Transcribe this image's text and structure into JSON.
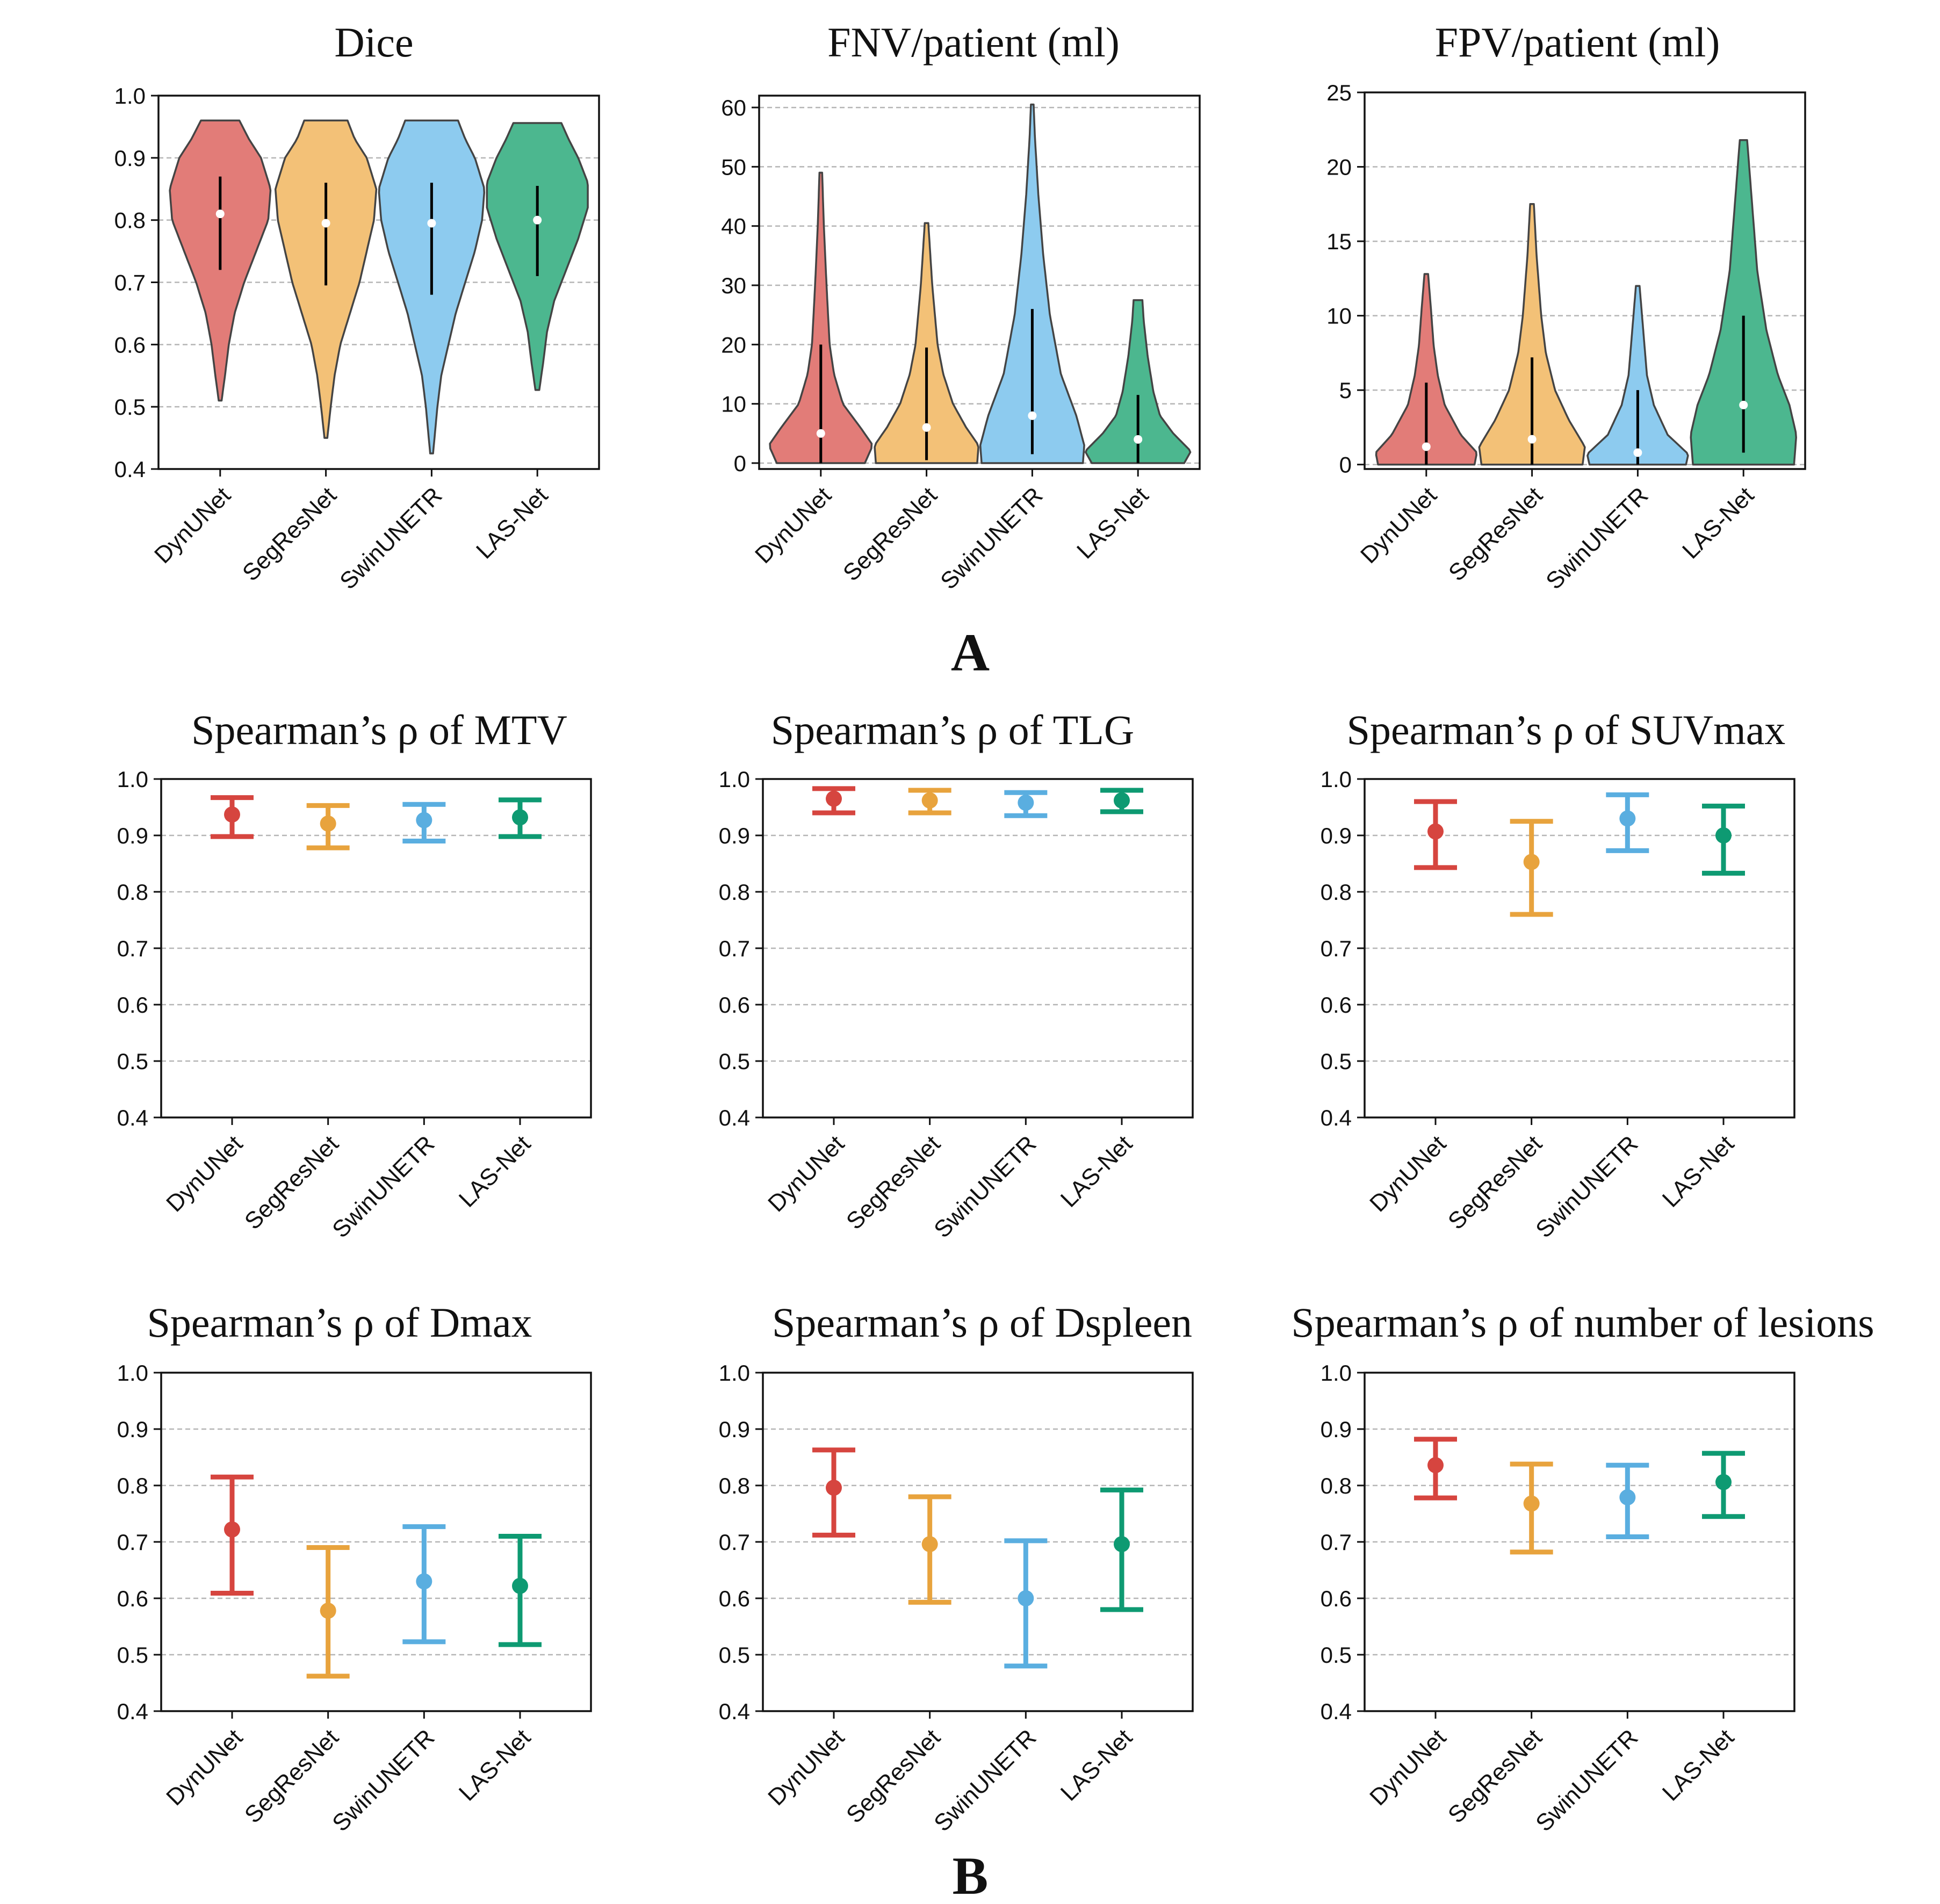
{
  "figure": {
    "panel_labels": [
      "A",
      "B"
    ]
  },
  "colors": {
    "DynUNet": "#d6453f",
    "SegResNet": "#e8a33d",
    "SwinUNETR": "#5aaee0",
    "LAS-Net": "#0e9a72",
    "violin_fill": {
      "DynUNet": "#e27c78",
      "SegResNet": "#f3c177",
      "SwinUNETR": "#8dcbef",
      "LAS-Net": "#4cb78f"
    }
  },
  "chart_data": [
    {
      "id": "dice",
      "type": "violin",
      "title": "Dice",
      "categories": [
        "DynUNet",
        "SegResNet",
        "SwinUNETR",
        "LAS-Net"
      ],
      "ylim": [
        0.4,
        1.0
      ],
      "yticks": [
        0.4,
        0.5,
        0.6,
        0.7,
        0.8,
        0.9,
        1.0
      ],
      "ytick_labels": [
        "0.4",
        "0.5",
        "0.6",
        "0.7",
        "0.8",
        "0.9",
        "1.0"
      ],
      "grid": true,
      "series": [
        {
          "name": "DynUNet",
          "min": 0.51,
          "max": 0.96,
          "q1": 0.72,
          "q3": 0.87,
          "median": 0.81,
          "shape": [
            [
              0.51,
              0.003
            ],
            [
              0.55,
              0.01
            ],
            [
              0.6,
              0.018
            ],
            [
              0.65,
              0.03
            ],
            [
              0.7,
              0.05
            ],
            [
              0.75,
              0.075
            ],
            [
              0.8,
              0.1
            ],
            [
              0.85,
              0.105
            ],
            [
              0.9,
              0.085
            ],
            [
              0.93,
              0.06
            ],
            [
              0.96,
              0.04
            ]
          ]
        },
        {
          "name": "SegResNet",
          "min": 0.45,
          "max": 0.96,
          "q1": 0.695,
          "q3": 0.86,
          "median": 0.795,
          "shape": [
            [
              0.45,
              0.003
            ],
            [
              0.5,
              0.01
            ],
            [
              0.55,
              0.018
            ],
            [
              0.6,
              0.03
            ],
            [
              0.65,
              0.05
            ],
            [
              0.7,
              0.07
            ],
            [
              0.75,
              0.085
            ],
            [
              0.8,
              0.1
            ],
            [
              0.85,
              0.105
            ],
            [
              0.9,
              0.085
            ],
            [
              0.93,
              0.06
            ],
            [
              0.96,
              0.045
            ]
          ]
        },
        {
          "name": "SwinUNETR",
          "min": 0.425,
          "max": 0.96,
          "q1": 0.68,
          "q3": 0.86,
          "median": 0.795,
          "shape": [
            [
              0.425,
              0.003
            ],
            [
              0.5,
              0.012
            ],
            [
              0.55,
              0.02
            ],
            [
              0.6,
              0.035
            ],
            [
              0.65,
              0.05
            ],
            [
              0.7,
              0.07
            ],
            [
              0.75,
              0.09
            ],
            [
              0.8,
              0.105
            ],
            [
              0.85,
              0.11
            ],
            [
              0.9,
              0.09
            ],
            [
              0.93,
              0.07
            ],
            [
              0.96,
              0.055
            ]
          ]
        },
        {
          "name": "LAS-Net",
          "min": 0.527,
          "max": 0.956,
          "q1": 0.71,
          "q3": 0.855,
          "median": 0.8,
          "shape": [
            [
              0.527,
              0.004
            ],
            [
              0.57,
              0.012
            ],
            [
              0.62,
              0.02
            ],
            [
              0.67,
              0.035
            ],
            [
              0.72,
              0.06
            ],
            [
              0.77,
              0.085
            ],
            [
              0.82,
              0.105
            ],
            [
              0.86,
              0.105
            ],
            [
              0.9,
              0.085
            ],
            [
              0.93,
              0.065
            ],
            [
              0.956,
              0.05
            ]
          ]
        }
      ]
    },
    {
      "id": "fnv",
      "type": "violin",
      "title": "FNV/patient (ml)",
      "categories": [
        "DynUNet",
        "SegResNet",
        "SwinUNETR",
        "LAS-Net"
      ],
      "ylim": [
        -1,
        62
      ],
      "yticks": [
        0,
        10,
        20,
        30,
        40,
        50,
        60
      ],
      "ytick_labels": [
        "0",
        "10",
        "20",
        "30",
        "40",
        "50",
        "60"
      ],
      "grid": true,
      "series": [
        {
          "name": "DynUNet",
          "min": 0,
          "max": 49,
          "q1": 0,
          "q3": 20,
          "median": 5,
          "shape": [
            [
              0,
              0.1
            ],
            [
              3,
              0.118
            ],
            [
              6,
              0.09
            ],
            [
              10,
              0.05
            ],
            [
              15,
              0.03
            ],
            [
              20,
              0.02
            ],
            [
              30,
              0.013
            ],
            [
              40,
              0.007
            ],
            [
              49,
              0.003
            ]
          ]
        },
        {
          "name": "SegResNet",
          "min": 0,
          "max": 40.5,
          "q1": 0.5,
          "q3": 19.5,
          "median": 6,
          "shape": [
            [
              0,
              0.115
            ],
            [
              3,
              0.118
            ],
            [
              6,
              0.09
            ],
            [
              10,
              0.06
            ],
            [
              15,
              0.038
            ],
            [
              20,
              0.025
            ],
            [
              30,
              0.013
            ],
            [
              40.5,
              0.004
            ]
          ]
        },
        {
          "name": "SwinUNETR",
          "min": 0,
          "max": 60.5,
          "q1": 1.5,
          "q3": 26,
          "median": 8,
          "shape": [
            [
              0,
              0.115
            ],
            [
              3,
              0.118
            ],
            [
              8,
              0.1
            ],
            [
              15,
              0.065
            ],
            [
              25,
              0.04
            ],
            [
              35,
              0.025
            ],
            [
              45,
              0.014
            ],
            [
              55,
              0.006
            ],
            [
              60.5,
              0.003
            ]
          ]
        },
        {
          "name": "LAS-Net",
          "min": 0,
          "max": 27.5,
          "q1": 0,
          "q3": 11.5,
          "median": 4,
          "shape": [
            [
              0,
              0.105
            ],
            [
              2,
              0.12
            ],
            [
              5,
              0.08
            ],
            [
              8,
              0.05
            ],
            [
              12,
              0.035
            ],
            [
              18,
              0.022
            ],
            [
              24,
              0.013
            ],
            [
              27.5,
              0.01
            ]
          ]
        }
      ]
    },
    {
      "id": "fpv",
      "type": "violin",
      "title": "FPV/patient (ml)",
      "categories": [
        "DynUNet",
        "SegResNet",
        "SwinUNETR",
        "LAS-Net"
      ],
      "ylim": [
        -0.3,
        25
      ],
      "yticks": [
        0,
        5,
        10,
        15,
        20,
        25
      ],
      "ytick_labels": [
        "0",
        "5",
        "10",
        "15",
        "20",
        "25"
      ],
      "grid": true,
      "series": [
        {
          "name": "DynUNet",
          "min": 0,
          "max": 12.8,
          "q1": 0,
          "q3": 5.5,
          "median": 1.2,
          "shape": [
            [
              0,
              0.105
            ],
            [
              0.8,
              0.11
            ],
            [
              2,
              0.075
            ],
            [
              4,
              0.04
            ],
            [
              6,
              0.025
            ],
            [
              8,
              0.016
            ],
            [
              10.5,
              0.01
            ],
            [
              12.8,
              0.004
            ]
          ]
        },
        {
          "name": "SegResNet",
          "min": 0,
          "max": 17.5,
          "q1": 0,
          "q3": 7.2,
          "median": 1.7,
          "shape": [
            [
              0,
              0.11
            ],
            [
              1.2,
              0.115
            ],
            [
              3,
              0.08
            ],
            [
              5,
              0.05
            ],
            [
              7.5,
              0.03
            ],
            [
              10,
              0.02
            ],
            [
              14,
              0.01
            ],
            [
              17.5,
              0.004
            ]
          ]
        },
        {
          "name": "SwinUNETR",
          "min": 0,
          "max": 12,
          "q1": 0,
          "q3": 5,
          "median": 0.8,
          "shape": [
            [
              0,
              0.105
            ],
            [
              0.7,
              0.11
            ],
            [
              2,
              0.065
            ],
            [
              4,
              0.035
            ],
            [
              6,
              0.02
            ],
            [
              9,
              0.012
            ],
            [
              12,
              0.004
            ]
          ]
        },
        {
          "name": "LAS-Net",
          "min": 0,
          "max": 21.8,
          "q1": 0.8,
          "q3": 10,
          "median": 4,
          "shape": [
            [
              0,
              0.11
            ],
            [
              2,
              0.115
            ],
            [
              4,
              0.1
            ],
            [
              6,
              0.075
            ],
            [
              9,
              0.05
            ],
            [
              13,
              0.03
            ],
            [
              17,
              0.02
            ],
            [
              21.8,
              0.008
            ]
          ]
        }
      ]
    },
    {
      "id": "mtv",
      "type": "errorbar",
      "title": "Spearman’s ρ of MTV",
      "categories": [
        "DynUNet",
        "SegResNet",
        "SwinUNETR",
        "LAS-Net"
      ],
      "ylim": [
        0.4,
        1.0
      ],
      "yticks": [
        0.4,
        0.5,
        0.6,
        0.7,
        0.8,
        0.9,
        1.0
      ],
      "ytick_labels": [
        "0.4",
        "0.5",
        "0.6",
        "0.7",
        "0.8",
        "0.9",
        "1.0"
      ],
      "grid": true,
      "series": [
        {
          "name": "DynUNet",
          "value": 0.937,
          "lower": 0.898,
          "upper": 0.967
        },
        {
          "name": "SegResNet",
          "value": 0.921,
          "lower": 0.878,
          "upper": 0.953
        },
        {
          "name": "SwinUNETR",
          "value": 0.927,
          "lower": 0.89,
          "upper": 0.955
        },
        {
          "name": "LAS-Net",
          "value": 0.932,
          "lower": 0.898,
          "upper": 0.963
        }
      ]
    },
    {
      "id": "tlg",
      "type": "errorbar",
      "title": "Spearman’s ρ of TLG",
      "categories": [
        "DynUNet",
        "SegResNet",
        "SwinUNETR",
        "LAS-Net"
      ],
      "ylim": [
        0.4,
        1.0
      ],
      "yticks": [
        0.4,
        0.5,
        0.6,
        0.7,
        0.8,
        0.9,
        1.0
      ],
      "ytick_labels": [
        "0.4",
        "0.5",
        "0.6",
        "0.7",
        "0.8",
        "0.9",
        "1.0"
      ],
      "grid": true,
      "series": [
        {
          "name": "DynUNet",
          "value": 0.965,
          "lower": 0.94,
          "upper": 0.983
        },
        {
          "name": "SegResNet",
          "value": 0.962,
          "lower": 0.94,
          "upper": 0.98
        },
        {
          "name": "SwinUNETR",
          "value": 0.958,
          "lower": 0.935,
          "upper": 0.976
        },
        {
          "name": "LAS-Net",
          "value": 0.962,
          "lower": 0.942,
          "upper": 0.98
        }
      ]
    },
    {
      "id": "suvmax",
      "type": "errorbar",
      "title": "Spearman’s ρ of SUVmax",
      "categories": [
        "DynUNet",
        "SegResNet",
        "SwinUNETR",
        "LAS-Net"
      ],
      "ylim": [
        0.4,
        1.0
      ],
      "yticks": [
        0.4,
        0.5,
        0.6,
        0.7,
        0.8,
        0.9,
        1.0
      ],
      "ytick_labels": [
        "0.4",
        "0.5",
        "0.6",
        "0.7",
        "0.8",
        "0.9",
        "1.0"
      ],
      "grid": true,
      "series": [
        {
          "name": "DynUNet",
          "value": 0.907,
          "lower": 0.843,
          "upper": 0.96
        },
        {
          "name": "SegResNet",
          "value": 0.853,
          "lower": 0.76,
          "upper": 0.925
        },
        {
          "name": "SwinUNETR",
          "value": 0.93,
          "lower": 0.873,
          "upper": 0.972
        },
        {
          "name": "LAS-Net",
          "value": 0.9,
          "lower": 0.833,
          "upper": 0.952
        }
      ]
    },
    {
      "id": "dmax",
      "type": "errorbar",
      "title": "Spearman’s ρ of Dmax",
      "categories": [
        "DynUNet",
        "SegResNet",
        "SwinUNETR",
        "LAS-Net"
      ],
      "ylim": [
        0.4,
        1.0
      ],
      "yticks": [
        0.4,
        0.5,
        0.6,
        0.7,
        0.8,
        0.9,
        1.0
      ],
      "ytick_labels": [
        "0.4",
        "0.5",
        "0.6",
        "0.7",
        "0.8",
        "0.9",
        "1.0"
      ],
      "grid": true,
      "series": [
        {
          "name": "DynUNet",
          "value": 0.722,
          "lower": 0.609,
          "upper": 0.815
        },
        {
          "name": "SegResNet",
          "value": 0.578,
          "lower": 0.462,
          "upper": 0.69
        },
        {
          "name": "SwinUNETR",
          "value": 0.63,
          "lower": 0.523,
          "upper": 0.727
        },
        {
          "name": "LAS-Net",
          "value": 0.622,
          "lower": 0.518,
          "upper": 0.71
        }
      ]
    },
    {
      "id": "dspleen",
      "type": "errorbar",
      "title": "Spearman’s ρ of Dspleen",
      "categories": [
        "DynUNet",
        "SegResNet",
        "SwinUNETR",
        "LAS-Net"
      ],
      "ylim": [
        0.4,
        1.0
      ],
      "yticks": [
        0.4,
        0.5,
        0.6,
        0.7,
        0.8,
        0.9,
        1.0
      ],
      "ytick_labels": [
        "0.4",
        "0.5",
        "0.6",
        "0.7",
        "0.8",
        "0.9",
        "1.0"
      ],
      "grid": true,
      "series": [
        {
          "name": "DynUNet",
          "value": 0.796,
          "lower": 0.712,
          "upper": 0.863
        },
        {
          "name": "SegResNet",
          "value": 0.696,
          "lower": 0.593,
          "upper": 0.78
        },
        {
          "name": "SwinUNETR",
          "value": 0.6,
          "lower": 0.48,
          "upper": 0.702
        },
        {
          "name": "LAS-Net",
          "value": 0.696,
          "lower": 0.58,
          "upper": 0.792
        }
      ]
    },
    {
      "id": "lesions",
      "type": "errorbar",
      "title": "Spearman’s ρ of number of lesions",
      "categories": [
        "DynUNet",
        "SegResNet",
        "SwinUNETR",
        "LAS-Net"
      ],
      "ylim": [
        0.4,
        1.0
      ],
      "yticks": [
        0.4,
        0.5,
        0.6,
        0.7,
        0.8,
        0.9,
        1.0
      ],
      "ytick_labels": [
        "0.4",
        "0.5",
        "0.6",
        "0.7",
        "0.8",
        "0.9",
        "1.0"
      ],
      "grid": true,
      "series": [
        {
          "name": "DynUNet",
          "value": 0.836,
          "lower": 0.778,
          "upper": 0.882
        },
        {
          "name": "SegResNet",
          "value": 0.768,
          "lower": 0.682,
          "upper": 0.838
        },
        {
          "name": "SwinUNETR",
          "value": 0.779,
          "lower": 0.709,
          "upper": 0.836
        },
        {
          "name": "LAS-Net",
          "value": 0.806,
          "lower": 0.745,
          "upper": 0.857
        }
      ]
    }
  ]
}
